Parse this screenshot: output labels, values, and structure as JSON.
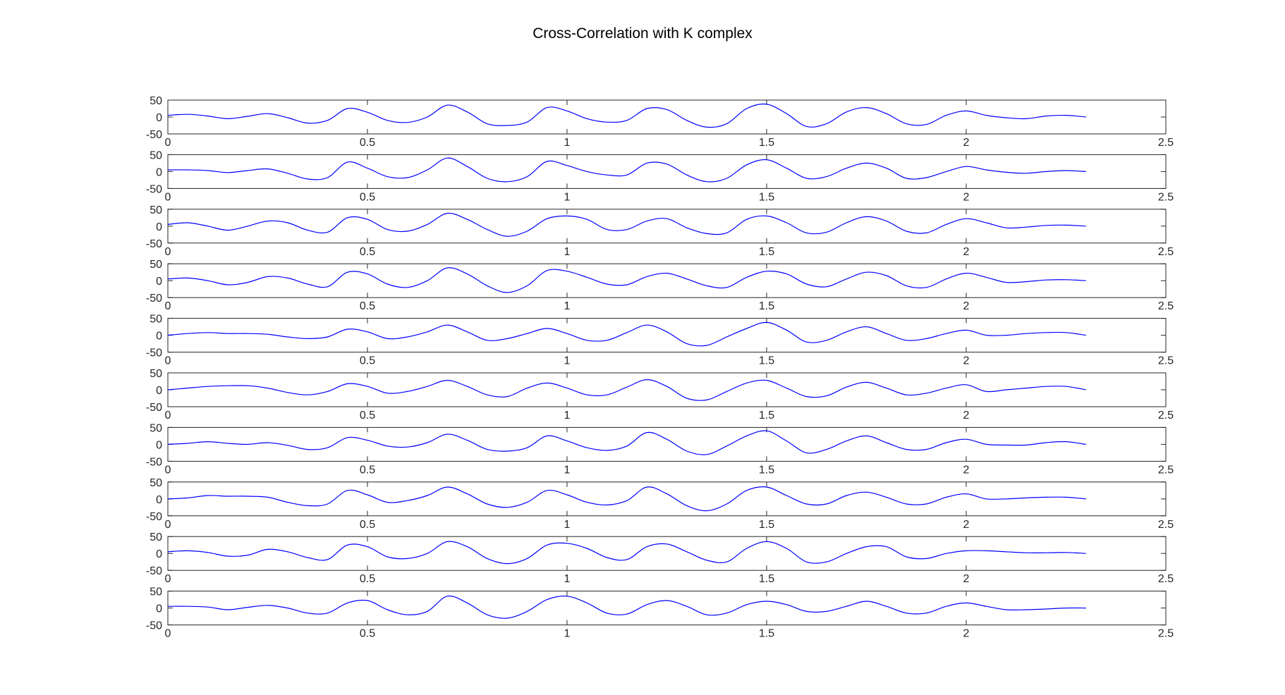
{
  "figure": {
    "title": "Cross-Correlation with K complex",
    "line_color": "#0000ff",
    "axis_color": "#262626"
  },
  "chart_data": {
    "type": "line",
    "subplots": 10,
    "xlim": [
      0,
      2.5
    ],
    "ylim": [
      -50,
      50
    ],
    "xticks": [
      0,
      0.5,
      1,
      1.5,
      2,
      2.5
    ],
    "xtick_labels": [
      "0",
      "0.5",
      "1",
      "1.5",
      "2",
      "2.5"
    ],
    "yticks": [
      50,
      0,
      -50
    ],
    "ytick_labels": [
      "50",
      "0",
      "-50"
    ],
    "grid": false,
    "x": [
      0.0,
      0.05,
      0.1,
      0.15,
      0.2,
      0.25,
      0.3,
      0.35,
      0.4,
      0.45,
      0.5,
      0.55,
      0.6,
      0.65,
      0.7,
      0.75,
      0.8,
      0.85,
      0.9,
      0.95,
      1.0,
      1.05,
      1.1,
      1.15,
      1.2,
      1.25,
      1.3,
      1.35,
      1.4,
      1.45,
      1.5,
      1.55,
      1.6,
      1.65,
      1.7,
      1.75,
      1.8,
      1.85,
      1.9,
      1.95,
      2.0,
      2.05,
      2.1,
      2.15,
      2.2,
      2.25,
      2.3
    ],
    "series": [
      {
        "values": [
          5,
          8,
          3,
          -5,
          2,
          10,
          -2,
          -18,
          -10,
          25,
          14,
          -10,
          -16,
          0,
          35,
          15,
          -20,
          -25,
          -15,
          28,
          18,
          -5,
          -15,
          -10,
          25,
          22,
          -10,
          -30,
          -20,
          25,
          38,
          10,
          -28,
          -20,
          15,
          28,
          10,
          -20,
          -22,
          5,
          18,
          5,
          -2,
          -5,
          3,
          5,
          0
        ]
      },
      {
        "values": [
          5,
          5,
          3,
          -3,
          3,
          8,
          -5,
          -22,
          -18,
          28,
          10,
          -15,
          -18,
          5,
          40,
          15,
          -20,
          -30,
          -15,
          30,
          18,
          0,
          -10,
          -10,
          25,
          22,
          -10,
          -30,
          -20,
          20,
          35,
          10,
          -20,
          -15,
          10,
          25,
          10,
          -20,
          -18,
          0,
          15,
          5,
          -2,
          -5,
          0,
          3,
          0
        ]
      },
      {
        "values": [
          5,
          10,
          0,
          -12,
          0,
          15,
          10,
          -12,
          -18,
          25,
          20,
          -10,
          -15,
          5,
          38,
          20,
          -10,
          -30,
          -15,
          22,
          30,
          20,
          -10,
          -10,
          15,
          22,
          -5,
          -22,
          -20,
          20,
          30,
          10,
          -20,
          -18,
          10,
          28,
          15,
          -15,
          -20,
          5,
          22,
          10,
          -5,
          -3,
          2,
          3,
          0
        ]
      },
      {
        "values": [
          5,
          8,
          0,
          -12,
          -5,
          12,
          8,
          -10,
          -18,
          25,
          20,
          -10,
          -20,
          0,
          38,
          20,
          -15,
          -35,
          -15,
          30,
          28,
          10,
          -10,
          -12,
          12,
          22,
          5,
          -15,
          -20,
          10,
          28,
          20,
          -10,
          -18,
          5,
          25,
          15,
          -15,
          -20,
          5,
          22,
          10,
          -5,
          -3,
          2,
          3,
          0
        ]
      },
      {
        "values": [
          0,
          5,
          8,
          5,
          5,
          3,
          -5,
          -10,
          -5,
          18,
          10,
          -10,
          -5,
          10,
          30,
          10,
          -15,
          -10,
          5,
          20,
          5,
          -15,
          -15,
          8,
          30,
          10,
          -25,
          -30,
          -5,
          20,
          38,
          15,
          -20,
          -15,
          10,
          25,
          5,
          -15,
          -10,
          5,
          15,
          0,
          0,
          5,
          8,
          8,
          0
        ]
      },
      {
        "values": [
          0,
          5,
          10,
          12,
          12,
          5,
          -8,
          -15,
          -5,
          18,
          10,
          -10,
          -5,
          10,
          28,
          10,
          -15,
          -20,
          5,
          20,
          5,
          -15,
          -15,
          8,
          30,
          10,
          -25,
          -30,
          -5,
          20,
          28,
          5,
          -20,
          -18,
          8,
          22,
          5,
          -15,
          -10,
          5,
          15,
          -5,
          0,
          5,
          10,
          10,
          0
        ]
      },
      {
        "values": [
          0,
          3,
          8,
          3,
          0,
          5,
          -3,
          -15,
          -10,
          20,
          12,
          -5,
          -8,
          5,
          30,
          12,
          -15,
          -20,
          -10,
          25,
          10,
          -10,
          -18,
          -5,
          35,
          15,
          -20,
          -30,
          -5,
          25,
          40,
          10,
          -25,
          -15,
          10,
          25,
          5,
          -15,
          -15,
          5,
          15,
          0,
          -2,
          -2,
          5,
          8,
          0
        ]
      },
      {
        "values": [
          0,
          3,
          10,
          8,
          8,
          5,
          -10,
          -20,
          -15,
          25,
          12,
          -10,
          -5,
          10,
          35,
          15,
          -15,
          -25,
          -10,
          25,
          12,
          -10,
          -18,
          -5,
          35,
          15,
          -20,
          -35,
          -15,
          25,
          35,
          10,
          -15,
          -15,
          10,
          20,
          5,
          -15,
          -15,
          5,
          15,
          0,
          0,
          3,
          5,
          5,
          0
        ]
      },
      {
        "values": [
          5,
          8,
          3,
          -8,
          -5,
          12,
          5,
          -12,
          -18,
          25,
          20,
          -10,
          -15,
          0,
          35,
          20,
          -15,
          -30,
          -15,
          25,
          30,
          15,
          -12,
          -18,
          20,
          28,
          5,
          -20,
          -25,
          15,
          35,
          15,
          -25,
          -25,
          0,
          20,
          20,
          -10,
          -15,
          0,
          8,
          8,
          5,
          2,
          2,
          3,
          0
        ]
      },
      {
        "values": [
          5,
          5,
          3,
          -5,
          2,
          8,
          0,
          -15,
          -15,
          15,
          22,
          -5,
          -20,
          -10,
          35,
          15,
          -20,
          -30,
          -10,
          25,
          35,
          15,
          -15,
          -18,
          10,
          22,
          5,
          -20,
          -15,
          10,
          20,
          10,
          -10,
          -10,
          5,
          20,
          5,
          -15,
          -15,
          5,
          15,
          5,
          -5,
          -5,
          -3,
          0,
          0
        ]
      }
    ]
  }
}
